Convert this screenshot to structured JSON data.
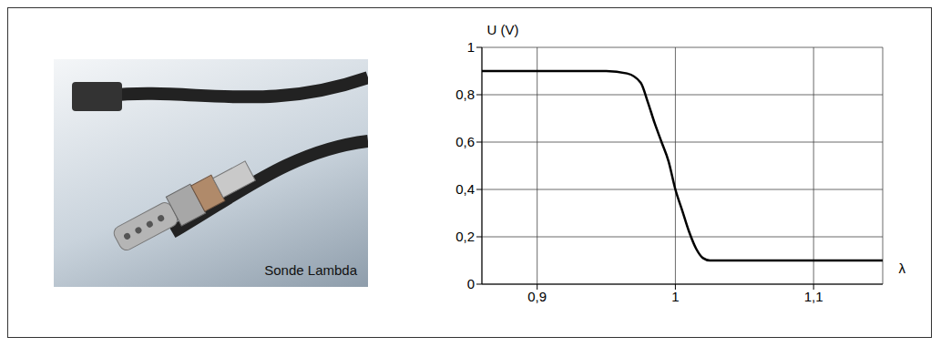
{
  "image": {
    "caption": "Sonde Lambda"
  },
  "chart_data": {
    "type": "line",
    "y_label": "U (V)",
    "x_label": "λ",
    "x": [
      0.86,
      0.9,
      0.95,
      0.965,
      0.975,
      0.98,
      0.985,
      0.99,
      0.995,
      1.0,
      1.005,
      1.01,
      1.015,
      1.02,
      1.025,
      1.03,
      1.05,
      1.1,
      1.15
    ],
    "values": [
      0.9,
      0.9,
      0.9,
      0.89,
      0.85,
      0.77,
      0.68,
      0.6,
      0.52,
      0.4,
      0.31,
      0.22,
      0.15,
      0.11,
      0.1,
      0.1,
      0.1,
      0.1,
      0.1
    ],
    "color": "#000000",
    "xlim": [
      0.86,
      1.15
    ],
    "xticks": [
      {
        "value": 0.9,
        "label": "0,9"
      },
      {
        "value": 1,
        "label": "1"
      },
      {
        "value": 1.1,
        "label": "1,1"
      }
    ],
    "ylim": [
      0,
      1
    ],
    "yticks": [
      0,
      {
        "value": 0.2,
        "label": "0,2"
      },
      {
        "value": 0.4,
        "label": "0,4"
      },
      {
        "value": 0.6,
        "label": "0,6"
      },
      {
        "value": 0.8,
        "label": "0,8"
      },
      1
    ],
    "grid": true
  }
}
